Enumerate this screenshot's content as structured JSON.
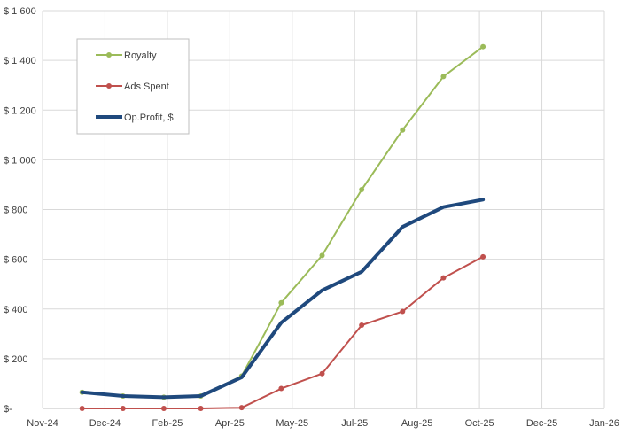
{
  "chart_data": {
    "type": "line",
    "x_tick_labels": [
      "Nov-24",
      "Dec-24",
      "Feb-25",
      "Apr-25",
      "May-25",
      "Jul-25",
      "Aug-25",
      "Oct-25",
      "Dec-25",
      "Jan-26"
    ],
    "y_tick_labels": [
      "$-",
      "$ 200",
      "$ 400",
      "$ 600",
      "$ 800",
      "$ 1 000",
      "$ 1 200",
      "$ 1 400",
      "$ 1 600"
    ],
    "y_ticks": [
      0,
      200,
      400,
      600,
      800,
      1000,
      1200,
      1400,
      1600
    ],
    "ylim": [
      0,
      1600
    ],
    "grid": true,
    "legend_position": "top-left",
    "x": [
      "2024-12-01",
      "2025-01-01",
      "2025-02-01",
      "2025-03-01",
      "2025-04-01",
      "2025-05-01",
      "2025-06-01",
      "2025-07-01",
      "2025-08-01",
      "2025-09-01",
      "2025-10-01"
    ],
    "series": [
      {
        "name": "Royalty",
        "color": "#9bbb59",
        "markers": true,
        "values": [
          65,
          50,
          45,
          50,
          130,
          425,
          615,
          880,
          1120,
          1335,
          1455
        ]
      },
      {
        "name": "Ads Spent",
        "color": "#c0504d",
        "markers": true,
        "values": [
          0,
          0,
          0,
          0,
          3,
          80,
          140,
          335,
          390,
          525,
          610
        ]
      },
      {
        "name": "Op.Profit, $",
        "color": "#1f497d",
        "markers": false,
        "values": [
          65,
          50,
          45,
          50,
          125,
          345,
          475,
          550,
          730,
          810,
          840
        ]
      }
    ]
  }
}
